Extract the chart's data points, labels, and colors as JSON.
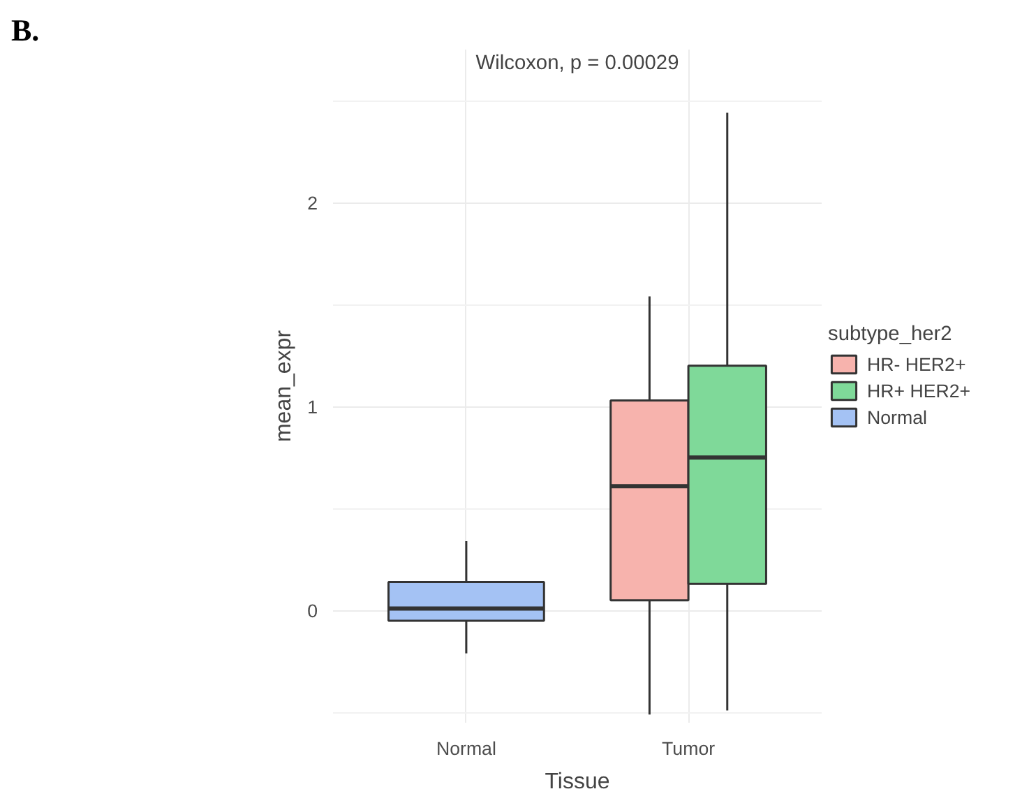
{
  "chart_data": {
    "type": "box",
    "title": "Wilcoxon, p = 0.00029",
    "xlabel": "Tissue",
    "ylabel": "mean_expr",
    "legend_title": "subtype_her2",
    "annotations": [
      "B."
    ],
    "categories": [
      "Normal",
      "Tumor"
    ],
    "series": [
      {
        "name": "HR- HER2+",
        "color": "#f7b3ad",
        "boxes": [
          null,
          {
            "low": -0.51,
            "q1": 0.05,
            "median": 0.61,
            "q3": 1.03,
            "high": 1.54
          }
        ]
      },
      {
        "name": "HR+ HER2+",
        "color": "#7fd999",
        "boxes": [
          null,
          {
            "low": -0.49,
            "q1": 0.13,
            "median": 0.75,
            "q3": 1.2,
            "high": 2.44
          }
        ]
      },
      {
        "name": "Normal",
        "color": "#a4c2f4",
        "boxes": [
          {
            "low": -0.21,
            "q1": -0.05,
            "median": 0.01,
            "q3": 0.14,
            "high": 0.34
          },
          null
        ]
      }
    ],
    "ylim": [
      -0.55,
      2.75
    ],
    "yticks": [
      0,
      1,
      2
    ],
    "grid": true,
    "legend": "right"
  }
}
